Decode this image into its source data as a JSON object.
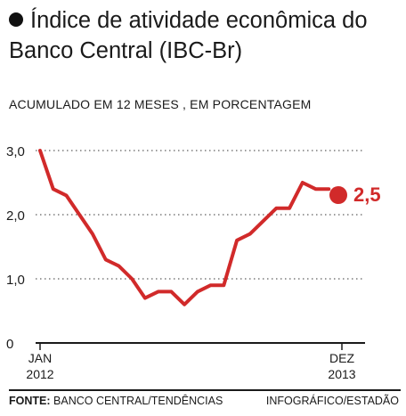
{
  "header": {
    "title": "Índice de atividade econômica do Banco Central (IBC-Br)",
    "subtitle": "ACUMULADO EM 12 MESES , EM PORCENTAGEM"
  },
  "footer": {
    "source_label": "FONTE:",
    "source": "BANCO CENTRAL/TENDÊNCIAS",
    "credit": "INFOGRÁFICO/ESTADÃO"
  },
  "colors": {
    "series": "#d12a2a",
    "axis": "#1a1a1a",
    "grid": "#7a7a7a"
  },
  "chart_data": {
    "type": "line",
    "title": "Índice de atividade econômica do Banco Central (IBC-Br)",
    "subtitle": "ACUMULADO EM 12 MESES , EM PORCENTAGEM",
    "x": [
      "2012-01",
      "2012-02",
      "2012-03",
      "2012-04",
      "2012-05",
      "2012-06",
      "2012-07",
      "2012-08",
      "2012-09",
      "2012-10",
      "2012-11",
      "2012-12",
      "2013-01",
      "2013-02",
      "2013-03",
      "2013-04",
      "2013-05",
      "2013-06",
      "2013-07",
      "2013-08",
      "2013-09",
      "2013-10",
      "2013-11",
      "2013-12"
    ],
    "series": [
      {
        "values": [
          3.0,
          2.4,
          2.3,
          2.0,
          1.7,
          1.3,
          1.2,
          1.0,
          0.7,
          0.8,
          0.8,
          0.6,
          0.8,
          0.9,
          0.9,
          1.6,
          1.7,
          1.9,
          2.1,
          2.1,
          2.5,
          2.4,
          2.4,
          2.5
        ]
      }
    ],
    "highlight": {
      "x": "2013-12",
      "value": 2.5,
      "label": "2,5"
    },
    "ylim": [
      0,
      3.0
    ],
    "y_ticks": [
      {
        "value": 0,
        "label": "0"
      },
      {
        "value": 1.0,
        "label": "1,0"
      },
      {
        "value": 2.0,
        "label": "2,0"
      },
      {
        "value": 3.0,
        "label": "3,0"
      }
    ],
    "x_ticks": [
      {
        "x": "2012-01",
        "label_top": "JAN",
        "label_bottom": "2012"
      },
      {
        "x": "2013-12",
        "label_top": "DEZ",
        "label_bottom": "2013"
      }
    ],
    "grid": true,
    "grid_style": "dotted horizontal"
  }
}
